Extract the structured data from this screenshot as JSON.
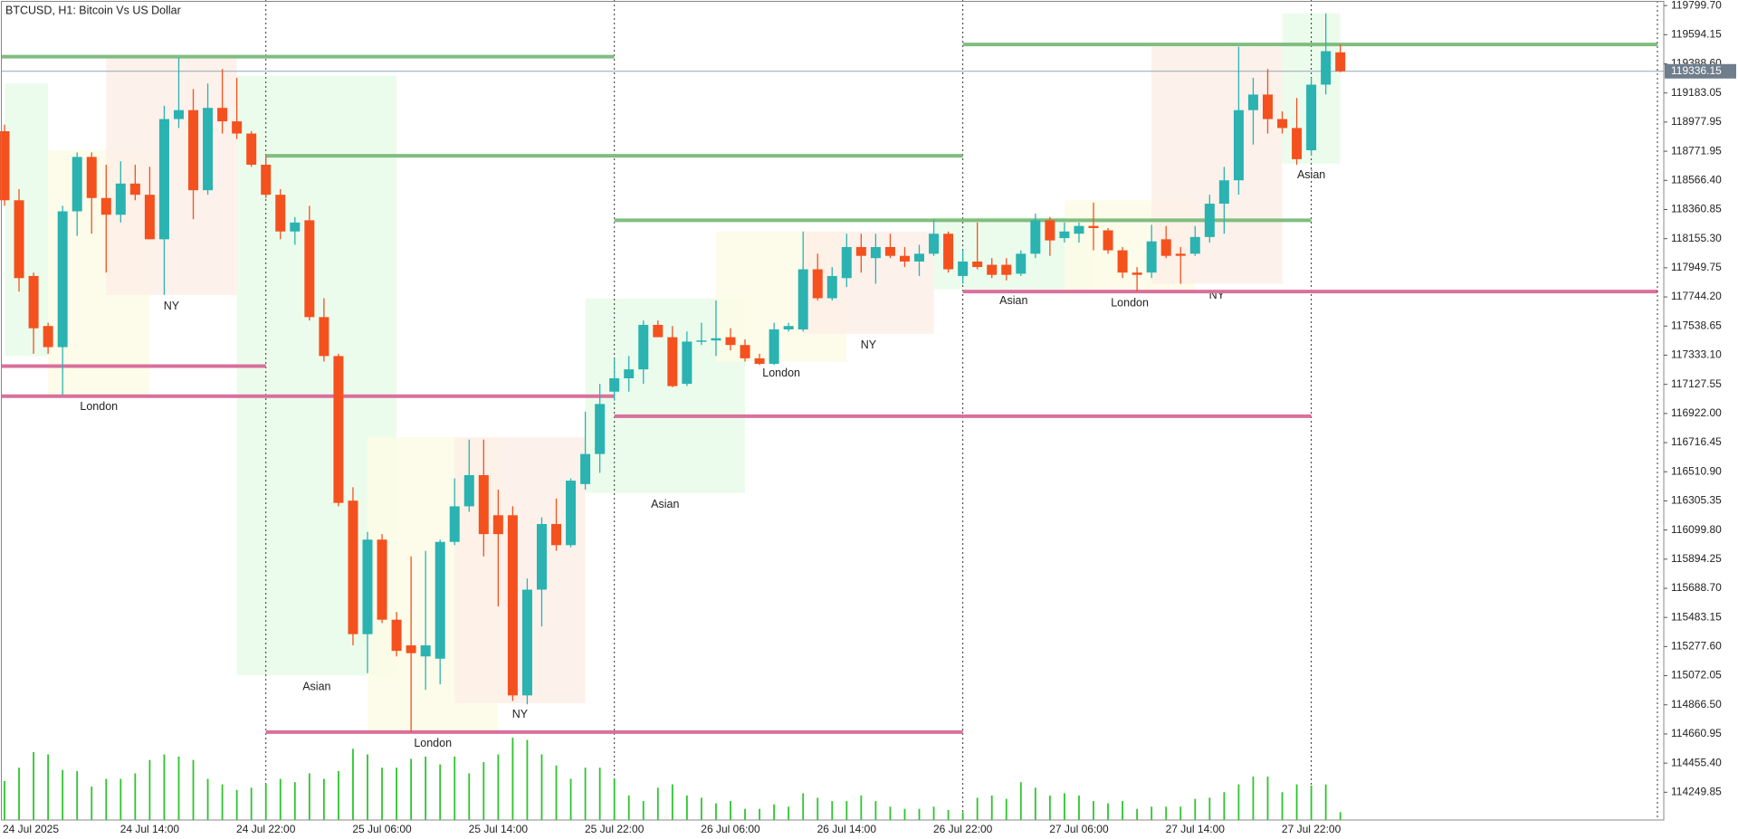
{
  "chart_data": {
    "type": "candlestick",
    "title": "BTCUSD, H1:  Bitcoin Vs US Dollar",
    "categories": [
      "24 Jul 2025",
      null,
      null,
      null,
      null,
      null,
      null,
      null,
      null,
      null,
      "24 Jul 14:00",
      null,
      null,
      null,
      null,
      null,
      null,
      null,
      "24 Jul 22:00",
      null,
      null,
      null,
      null,
      null,
      null,
      null,
      "25 Jul 06:00",
      null,
      null,
      null,
      null,
      null,
      null,
      null,
      "25 Jul 14:00",
      null,
      null,
      null,
      null,
      null,
      null,
      null,
      "25 Jul 22:00",
      null,
      null,
      null,
      null,
      null,
      null,
      null,
      "26 Jul 06:00",
      null,
      null,
      null,
      null,
      null,
      null,
      null,
      "26 Jul 14:00",
      null,
      null,
      null,
      null,
      null,
      null,
      null,
      "26 Jul 22:00",
      null,
      null,
      null,
      null,
      null,
      null,
      null,
      "27 Jul 06:00",
      null,
      null,
      null,
      null,
      null,
      null,
      null,
      "27 Jul 14:00",
      null,
      null,
      null,
      null,
      null,
      null,
      null,
      "27 Jul 22:00",
      null,
      null
    ],
    "open": [
      118913,
      118426,
      117892,
      117539,
      117390,
      118348,
      118732,
      118442,
      118324,
      118544,
      118465,
      118151,
      118999,
      119062,
      118497,
      119078,
      118983,
      118897,
      118677,
      118465,
      118206,
      118285,
      117602,
      117327,
      116307,
      115365,
      116032,
      115467,
      115286,
      115208,
      115192,
      116016,
      116267,
      116487,
      116204,
      116204,
      114933,
      115679,
      116142,
      115993,
      116424,
      116636,
      117076,
      117170,
      117233,
      117547,
      117460,
      117131,
      117429,
      117437,
      117460,
      117405,
      117311,
      117272,
      117515,
      117515,
      117939,
      117735,
      117877,
      118096,
      118018,
      118096,
      118034,
      117994,
      118049,
      118190,
      117892,
      117994,
      117971,
      117971,
      117908,
      118049,
      118285,
      118159,
      118190,
      118245,
      118214,
      118073,
      117916,
      117916,
      118151,
      118049,
      118049,
      118167,
      118402,
      118567,
      119062,
      119172,
      118999,
      118936,
      118779,
      119242,
      119470
    ],
    "high": [
      118960,
      118505,
      117916,
      117562,
      118387,
      118764,
      118764,
      118677,
      118701,
      118677,
      118662,
      119093,
      119431,
      119211,
      119250,
      119352,
      119290,
      118913,
      118740,
      118505,
      118308,
      118387,
      117735,
      117343,
      116401,
      116087,
      116071,
      115522,
      115914,
      115953,
      116032,
      116464,
      116738,
      116738,
      116385,
      116267,
      115757,
      116189,
      116322,
      116464,
      116935,
      117131,
      117311,
      117327,
      117578,
      117578,
      117539,
      117500,
      117562,
      117719,
      117523,
      117445,
      117343,
      117562,
      117562,
      118206,
      118049,
      117955,
      118190,
      118190,
      118190,
      118190,
      118096,
      118112,
      118293,
      118206,
      118073,
      118269,
      118018,
      118018,
      118073,
      118332,
      118308,
      118269,
      118269,
      118410,
      118230,
      118096,
      117955,
      118253,
      118245,
      118096,
      118245,
      118465,
      118662,
      119509,
      119290,
      119352,
      119054,
      119148,
      119290,
      119745,
      119525
    ],
    "low": [
      118387,
      117782,
      117343,
      117343,
      117052,
      118175,
      118190,
      117916,
      118269,
      118426,
      118151,
      117759,
      118936,
      118293,
      118465,
      118897,
      118858,
      118662,
      118442,
      118151,
      118112,
      117578,
      117288,
      116267,
      115286,
      115090,
      115443,
      115208,
      114674,
      114972,
      115011,
      115993,
      116228,
      115914,
      115561,
      114894,
      114870,
      115419,
      115953,
      115977,
      116385,
      116503,
      117013,
      117076,
      117131,
      117515,
      117107,
      117115,
      117405,
      117327,
      117366,
      117288,
      117264,
      117264,
      117500,
      117500,
      117719,
      117719,
      117814,
      117916,
      117837,
      118018,
      117955,
      117892,
      118034,
      117916,
      117837,
      117939,
      117877,
      117861,
      117892,
      118018,
      118034,
      118128,
      118128,
      118073,
      118049,
      117877,
      117782,
      117877,
      118018,
      117837,
      118034,
      118128,
      118190,
      118465,
      118819,
      118897,
      118897,
      118677,
      118740,
      119172,
      119329
    ],
    "close": [
      118426,
      117877,
      117523,
      117390,
      118348,
      118732,
      118442,
      118324,
      118544,
      118465,
      118151,
      118999,
      119062,
      118497,
      119078,
      118983,
      118897,
      118677,
      118465,
      118206,
      118269,
      117602,
      117327,
      116291,
      115365,
      116032,
      115467,
      115247,
      115231,
      115286,
      116016,
      116267,
      116487,
      116071,
      116071,
      114933,
      115679,
      116142,
      115993,
      116448,
      116636,
      116989,
      117170,
      117233,
      117547,
      117460,
      117115,
      117429,
      117437,
      117453,
      117405,
      117311,
      117272,
      117515,
      117539,
      117939,
      117735,
      117892,
      118096,
      118034,
      118096,
      118034,
      117994,
      118049,
      118190,
      117939,
      117994,
      117955,
      117900,
      117900,
      118049,
      118285,
      118143,
      118206,
      118245,
      118230,
      118073,
      117916,
      117900,
      118136,
      118034,
      118034,
      118167,
      118402,
      118567,
      119062,
      119172,
      118999,
      118936,
      118716,
      119242,
      119478,
      119336.15
    ],
    "volume": [
      35,
      47,
      61,
      59,
      45,
      44,
      30,
      37,
      37,
      42,
      54,
      59,
      57,
      54,
      37,
      32,
      27,
      29,
      32,
      37,
      34,
      42,
      37,
      44,
      64,
      59,
      47,
      47,
      55,
      57,
      50,
      57,
      42,
      52,
      59,
      74,
      72,
      59,
      49,
      37,
      47,
      47,
      37,
      22,
      17,
      29,
      32,
      22,
      20,
      15,
      17,
      10,
      10,
      14,
      12,
      24,
      20,
      17,
      17,
      22,
      17,
      12,
      10,
      10,
      12,
      9,
      7,
      20,
      22,
      19,
      34,
      29,
      22,
      24,
      22,
      17,
      15,
      17,
      10,
      12,
      12,
      12,
      19,
      20,
      25,
      32,
      39,
      39,
      25,
      32,
      31,
      32,
      7
    ],
    "colors": {
      "up": "#2ab3b1",
      "down": "#f4511e",
      "volume": "#2dc52d",
      "current": "#93a6b8",
      "current_label": "#6f7e8c"
    },
    "ylim": [
      114054,
      119839
    ],
    "yticks": [
      {
        "value": 119799.7,
        "label": "119799.70"
      },
      119594.15,
      {
        "value": 119388.6,
        "label": "119388.60"
      },
      119183.05,
      118977.95,
      118771.95,
      {
        "value": 118566.4,
        "label": "118566.40"
      },
      118360.85,
      {
        "value": 118155.3,
        "label": "118155.30"
      },
      117949.75,
      {
        "value": 117744.2,
        "label": "117744.20"
      },
      117538.65,
      {
        "value": 117333.1,
        "label": "117333.10"
      },
      117127.55,
      {
        "value": 116922.0,
        "label": "116922.00"
      },
      116716.45,
      {
        "value": 116510.9,
        "label": "116510.90"
      },
      116305.35,
      {
        "value": 116099.8,
        "label": "116099.80"
      },
      115894.25,
      {
        "value": 115688.7,
        "label": "115688.70"
      },
      115483.15,
      {
        "value": 115277.6,
        "label": "115277.60"
      },
      115072.05,
      {
        "value": 114866.5,
        "label": "114866.50"
      },
      114660.95,
      {
        "value": 114455.4,
        "label": "114455.40"
      },
      114249.85
    ],
    "grid": false,
    "separators": [
      18,
      42,
      66,
      90
    ],
    "levels": [
      {
        "price": 119439,
        "start": 0,
        "end": 42,
        "color": "#80bd80"
      },
      {
        "price": 117256,
        "start": 0,
        "end": 18,
        "color": "#d9709c"
      },
      {
        "price": 117044,
        "start": 0,
        "end": 42,
        "color": "#d9709c"
      },
      {
        "price": 118740,
        "start": 18,
        "end": 66,
        "color": "#80bd80"
      },
      {
        "price": 114674,
        "start": 18,
        "end": 66,
        "color": "#d9709c"
      },
      {
        "price": 118285,
        "start": 42,
        "end": 90,
        "color": "#80bd80"
      },
      {
        "price": 116903,
        "start": 42,
        "end": 90,
        "color": "#d9709c"
      },
      {
        "price": 119525,
        "start": 66,
        "end": null,
        "color": "#80bd80"
      },
      {
        "price": 117782,
        "start": 66,
        "end": null,
        "color": "#d9709c"
      }
    ],
    "sessions": [
      {
        "label": null,
        "start": 0,
        "end": 3,
        "high": 119250,
        "low": 117327,
        "color": "#e9fbe9"
      },
      {
        "label": "London",
        "start": 3,
        "end": 10,
        "high": 118779,
        "low": 117052,
        "color": "#fdfbe6"
      },
      {
        "label": "NY",
        "start": 7,
        "end": 16,
        "high": 119431,
        "low": 117759,
        "color": "#fdeee8"
      },
      {
        "label": "Asian",
        "start": 16,
        "end": 27,
        "high": 119305,
        "low": 115074,
        "color": "#e9fbe9"
      },
      {
        "label": "London",
        "start": 25,
        "end": 34,
        "high": 116754,
        "low": 114674,
        "color": "#fdfbe6"
      },
      {
        "label": "NY",
        "start": 31,
        "end": 40,
        "high": 116754,
        "low": 114878,
        "color": "#fdeee8"
      },
      {
        "label": "Asian",
        "start": 40,
        "end": 51,
        "high": 117735,
        "low": 116361,
        "color": "#e9fbe9"
      },
      {
        "label": "London",
        "start": 49,
        "end": 58,
        "high": 118206,
        "low": 117288,
        "color": "#fdfbe6"
      },
      {
        "label": "NY",
        "start": 55,
        "end": 64,
        "high": 118206,
        "low": 117484,
        "color": "#fdeee8"
      },
      {
        "label": "Asian",
        "start": 64,
        "end": 75,
        "high": 118308,
        "low": 117798,
        "color": "#e9fbe9"
      },
      {
        "label": "London",
        "start": 73,
        "end": 82,
        "high": 118426,
        "low": 117782,
        "color": "#fdfbe6"
      },
      {
        "label": "NY",
        "start": 79,
        "end": 88,
        "high": 119509,
        "low": 117837,
        "color": "#fdeee8"
      },
      {
        "label": "Asian",
        "start": 88,
        "end": 92,
        "high": 119745,
        "low": 118685,
        "color": "#e9fbe9"
      }
    ],
    "current_price": 119336.15
  }
}
